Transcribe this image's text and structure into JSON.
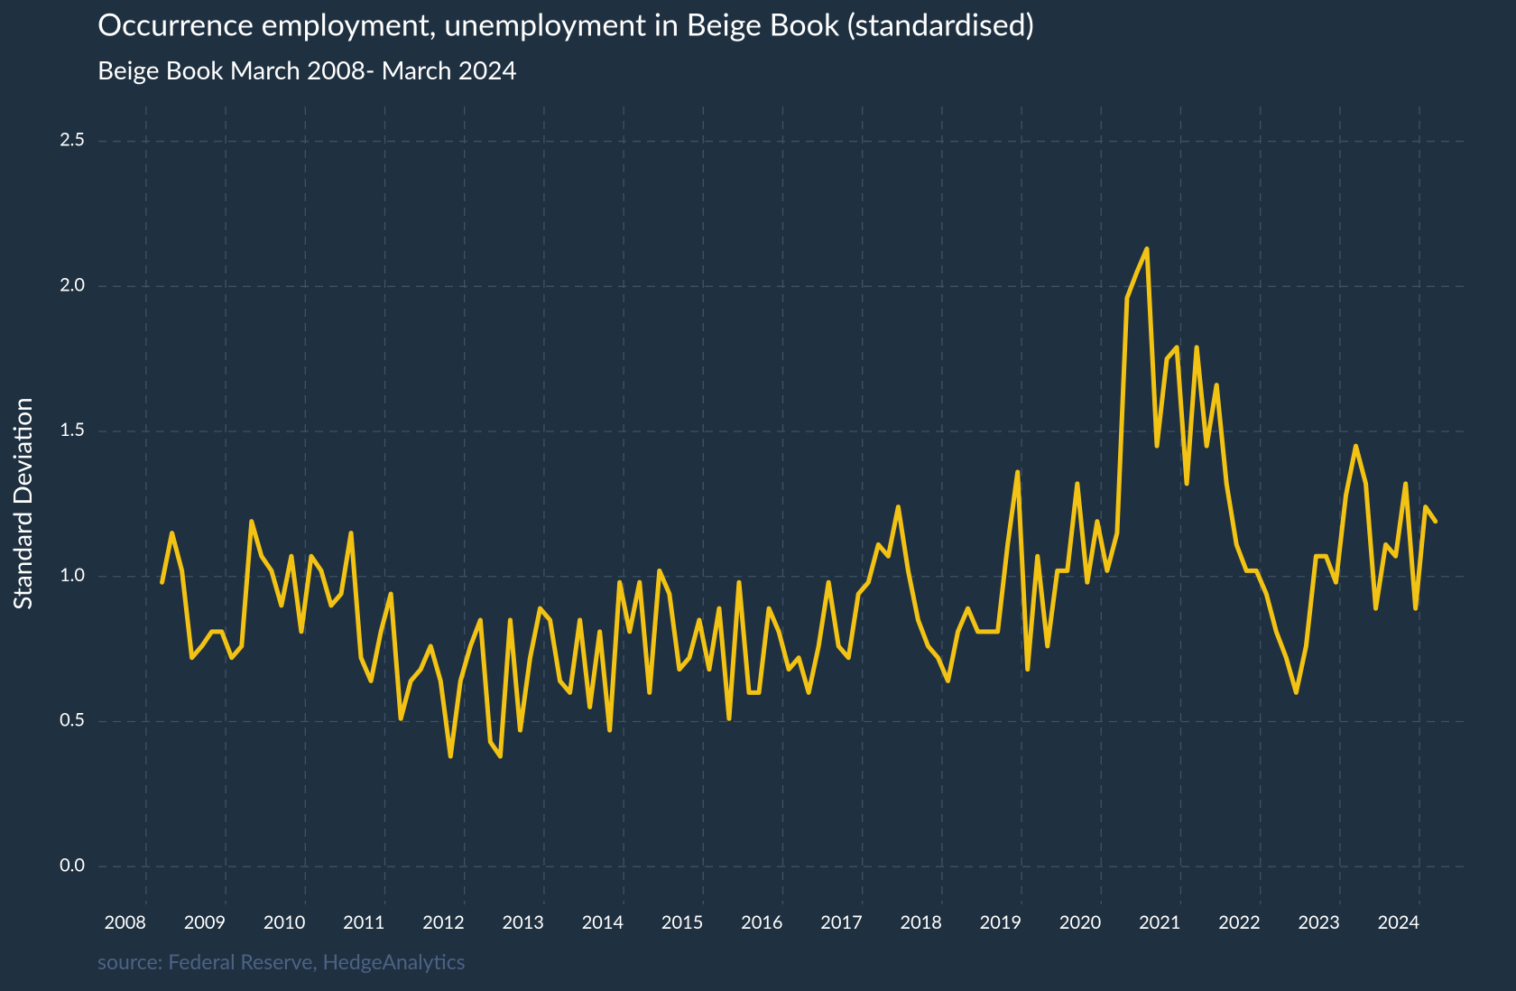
{
  "chart_data": {
    "type": "line",
    "title": "Occurrence employment, unemployment in Beige Book (standardised)",
    "subtitle": "Beige Book March 2008- March 2024",
    "y_label": "Standard Deviation",
    "source": "source: Federal Reserve, HedgeAnalytics",
    "xlim": [
      2007.4,
      2024.6
    ],
    "xticks": [
      2008,
      2009,
      2010,
      2011,
      2012,
      2013,
      2014,
      2015,
      2016,
      2017,
      2018,
      2019,
      2020,
      2021,
      2022,
      2023,
      2024
    ],
    "ylim": [
      -0.13,
      2.62
    ],
    "yticks": [
      0.0,
      0.5,
      1.0,
      1.5,
      2.0,
      2.5
    ],
    "ytick_labels": [
      "0.0",
      "0.5",
      "1.0",
      "1.5",
      "2.0",
      "2.5"
    ],
    "grid": true,
    "x": [
      2008.2,
      2008.325,
      2008.45,
      2008.575,
      2008.7,
      2008.825,
      2008.95,
      2009.075,
      2009.2,
      2009.325,
      2009.45,
      2009.575,
      2009.7,
      2009.825,
      2009.95,
      2010.075,
      2010.2,
      2010.325,
      2010.45,
      2010.575,
      2010.7,
      2010.825,
      2010.95,
      2011.075,
      2011.2,
      2011.325,
      2011.45,
      2011.575,
      2011.7,
      2011.825,
      2011.95,
      2012.075,
      2012.2,
      2012.325,
      2012.45,
      2012.575,
      2012.7,
      2012.825,
      2012.95,
      2013.075,
      2013.2,
      2013.325,
      2013.45,
      2013.575,
      2013.7,
      2013.825,
      2013.95,
      2014.075,
      2014.2,
      2014.325,
      2014.45,
      2014.575,
      2014.7,
      2014.825,
      2014.95,
      2015.075,
      2015.2,
      2015.325,
      2015.45,
      2015.575,
      2015.7,
      2015.825,
      2015.95,
      2016.075,
      2016.2,
      2016.325,
      2016.45,
      2016.575,
      2016.7,
      2016.825,
      2016.95,
      2017.075,
      2017.2,
      2017.325,
      2017.45,
      2017.575,
      2017.7,
      2017.825,
      2017.95,
      2018.075,
      2018.2,
      2018.325,
      2018.45,
      2018.575,
      2018.7,
      2018.825,
      2018.95,
      2019.075,
      2019.2,
      2019.325,
      2019.45,
      2019.575,
      2019.7,
      2019.825,
      2019.95,
      2020.075,
      2020.2,
      2020.325,
      2020.45,
      2020.575,
      2020.7,
      2020.825,
      2020.95,
      2021.075,
      2021.2,
      2021.325,
      2021.45,
      2021.575,
      2021.7,
      2021.825,
      2021.95,
      2022.075,
      2022.2,
      2022.325,
      2022.45,
      2022.575,
      2022.7,
      2022.825,
      2022.95,
      2023.075,
      2023.2,
      2023.325,
      2023.45,
      2023.575,
      2023.7,
      2023.825,
      2023.95,
      2024.075,
      2024.2
    ],
    "series": [
      {
        "name": "Standard Deviation",
        "color": "#f2c314",
        "values": [
          0.98,
          1.15,
          1.02,
          0.72,
          0.76,
          0.81,
          0.81,
          0.72,
          0.76,
          1.19,
          1.07,
          1.02,
          0.9,
          1.07,
          0.81,
          1.07,
          1.02,
          0.9,
          0.94,
          1.15,
          0.72,
          0.64,
          0.81,
          0.94,
          0.51,
          0.64,
          0.68,
          0.76,
          0.64,
          0.38,
          0.64,
          0.76,
          0.85,
          0.43,
          0.38,
          0.85,
          0.47,
          0.72,
          0.89,
          0.85,
          0.64,
          0.6,
          0.85,
          0.55,
          0.81,
          0.47,
          0.98,
          0.81,
          0.98,
          0.6,
          1.02,
          0.94,
          0.68,
          0.72,
          0.85,
          0.68,
          0.89,
          0.51,
          0.98,
          0.6,
          0.6,
          0.89,
          0.81,
          0.68,
          0.72,
          0.6,
          0.76,
          0.98,
          0.76,
          0.72,
          0.94,
          0.98,
          1.11,
          1.07,
          1.24,
          1.02,
          0.85,
          0.76,
          0.72,
          0.64,
          0.81,
          0.89,
          0.81,
          0.81,
          0.81,
          1.11,
          1.36,
          0.68,
          1.07,
          0.76,
          1.02,
          1.02,
          1.32,
          0.98,
          1.19,
          1.02,
          1.15,
          1.96,
          2.05,
          2.13,
          1.45,
          1.75,
          1.79,
          1.32,
          1.79,
          1.45,
          1.66,
          1.32,
          1.11,
          1.02,
          1.02,
          0.94,
          0.81,
          0.72,
          0.6,
          0.76,
          1.07,
          1.07,
          0.98,
          1.28,
          1.45,
          1.32,
          0.89,
          1.11,
          1.07,
          1.32,
          0.89,
          1.24,
          1.19
        ]
      }
    ]
  }
}
